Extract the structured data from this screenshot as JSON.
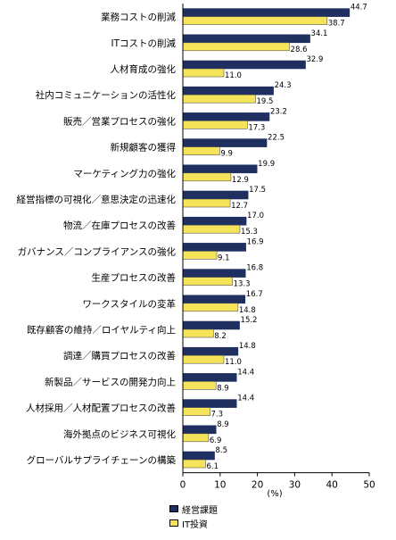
{
  "chart_data": {
    "type": "bar",
    "orientation": "horizontal",
    "categories": [
      "業務コストの削減",
      "ITコストの削減",
      "人材育成の強化",
      "社内コミュニケーションの活性化",
      "販売／営業プロセスの強化",
      "新規顧客の獲得",
      "マーケティング力の強化",
      "経営指標の可視化／意思決定の迅速化",
      "物流／在庫プロセスの改善",
      "ガバナンス／コンプライアンスの強化",
      "生産プロセスの改善",
      "ワークスタイルの変革",
      "既存顧客の維持／ロイヤルティ向上",
      "調達／購買プロセスの改善",
      "新製品／サービスの開発力向上",
      "人材採用／人材配置プロセスの改善",
      "海外拠点のビジネス可視化",
      "グローバルサプライチェーンの構築"
    ],
    "series": [
      {
        "name": "経営課題",
        "color": "#1f2f5f",
        "values": [
          44.7,
          34.1,
          32.9,
          24.3,
          23.2,
          22.5,
          19.9,
          17.5,
          17.0,
          16.9,
          16.8,
          16.7,
          15.2,
          14.8,
          14.4,
          14.4,
          8.9,
          8.5
        ]
      },
      {
        "name": "IT投資",
        "color": "#f5e45a",
        "values": [
          38.7,
          28.6,
          11.0,
          19.5,
          17.3,
          9.9,
          12.9,
          12.7,
          15.3,
          9.1,
          13.3,
          14.8,
          8.2,
          11.0,
          8.9,
          7.3,
          6.9,
          6.1
        ]
      }
    ],
    "xlabel": "(%)",
    "xlim": [
      0,
      50
    ],
    "xticks": [
      0,
      10,
      20,
      30,
      40,
      50
    ],
    "grid": false,
    "legend_position": "bottom"
  }
}
